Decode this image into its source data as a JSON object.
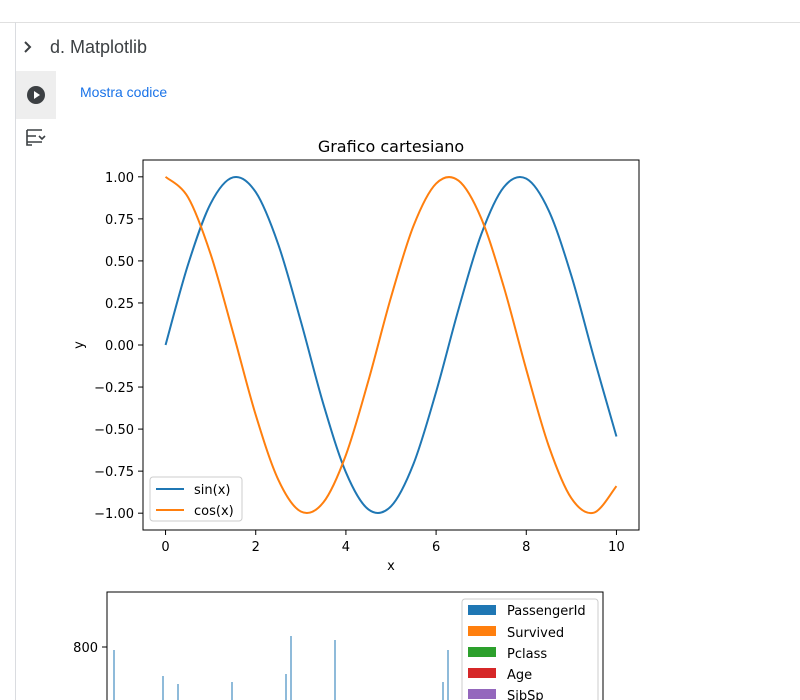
{
  "section": {
    "title": "d. Matplotlib"
  },
  "cell": {
    "show_code_label": "Mostra codice"
  },
  "icons": {
    "expand": "chevron-right-icon",
    "run": "play-circle-icon",
    "form": "form-toggle-icon"
  },
  "chart_data": [
    {
      "type": "line",
      "title": "Grafico cartesiano",
      "xlabel": "x",
      "ylabel": "y",
      "xlim": [
        -0.5,
        10.5
      ],
      "ylim": [
        -1.1,
        1.1
      ],
      "xticks": [
        0,
        2,
        4,
        6,
        8,
        10
      ],
      "xtick_labels": [
        "0",
        "2",
        "4",
        "6",
        "8",
        "10"
      ],
      "yticks": [
        -1.0,
        -0.75,
        -0.5,
        -0.25,
        0.0,
        0.25,
        0.5,
        0.75,
        1.0
      ],
      "ytick_labels": [
        "−1.00",
        "−0.75",
        "−0.50",
        "−0.25",
        "0.00",
        "0.25",
        "0.50",
        "0.75",
        "1.00"
      ],
      "legend_position": "lower-left",
      "grid": false,
      "series": [
        {
          "name": "sin(x)",
          "color": "#1f77b4",
          "x": [
            0,
            0.5,
            1,
            1.5,
            2,
            2.5,
            3,
            3.5,
            4,
            4.5,
            5,
            5.5,
            6,
            6.5,
            7,
            7.5,
            8,
            8.5,
            9,
            9.5,
            10
          ],
          "y": [
            0.0,
            0.479,
            0.841,
            0.997,
            0.909,
            0.598,
            0.141,
            -0.351,
            -0.757,
            -0.978,
            -0.959,
            -0.706,
            -0.279,
            0.215,
            0.657,
            0.938,
            0.989,
            0.798,
            0.412,
            -0.075,
            -0.544
          ]
        },
        {
          "name": "cos(x)",
          "color": "#ff7f0e",
          "x": [
            0,
            0.5,
            1,
            1.5,
            2,
            2.5,
            3,
            3.5,
            4,
            4.5,
            5,
            5.5,
            6,
            6.5,
            7,
            7.5,
            8,
            8.5,
            9,
            9.5,
            10
          ],
          "y": [
            1.0,
            0.878,
            0.54,
            0.071,
            -0.416,
            -0.801,
            -0.99,
            -0.936,
            -0.654,
            -0.211,
            0.284,
            0.709,
            0.96,
            0.977,
            0.754,
            0.347,
            -0.146,
            -0.602,
            -0.911,
            -0.997,
            -0.839
          ]
        }
      ]
    },
    {
      "type": "bar",
      "yticks": [
        800
      ],
      "ytick_labels": [
        "800"
      ],
      "legend_position": "upper-right",
      "series": [
        {
          "name": "PassengerId",
          "color": "#1f77b4"
        },
        {
          "name": "Survived",
          "color": "#ff7f0e"
        },
        {
          "name": "Pclass",
          "color": "#2ca02c"
        },
        {
          "name": "Age",
          "color": "#d62728"
        },
        {
          "name": "SibSp",
          "color": "#9467bd"
        }
      ]
    }
  ]
}
